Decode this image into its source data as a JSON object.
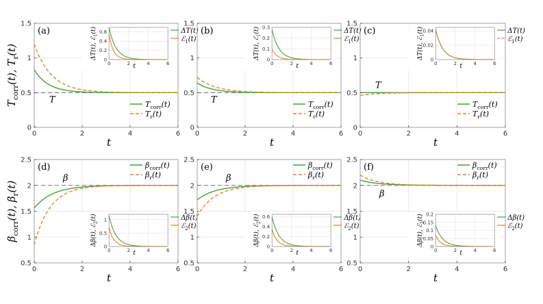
{
  "colors": {
    "green": "#3fa535",
    "orange": "#f07f26",
    "ref": "#777777",
    "grid": "#e3e3e3",
    "frame": "#8c8c8c"
  },
  "shared_ylabels": {
    "top": "T_corr(t), T_r(t)",
    "bottom": "β_corr(t), β_r(t)"
  },
  "chart_data": [
    {
      "type": "line",
      "panel": "(a)",
      "title": "",
      "xlabel": "t",
      "ylabel": "T_corr(t), T_r(t)",
      "xlim": [
        0,
        6
      ],
      "ylim": [
        0,
        1.5
      ],
      "xticks": [
        0,
        2,
        4,
        6
      ],
      "yticks": [
        0,
        0.5,
        1,
        1.5
      ],
      "reference": {
        "value": 0.5,
        "label": "T"
      },
      "series": [
        {
          "name": "T_corr(t)",
          "style": "solid",
          "color": "green",
          "start": 0.83,
          "end": 0.5,
          "rate": 1.7
        },
        {
          "name": "T_r(t)",
          "style": "dashed",
          "color": "orange",
          "start": 1.2,
          "end": 0.5,
          "rate": 1.4
        }
      ],
      "legend": [
        "T_corr(t)",
        "T_r(t)"
      ],
      "legend_position": "bottom-right",
      "inset": {
        "xlim": [
          0,
          6
        ],
        "ylim": [
          0,
          0.7
        ],
        "xticks": [
          0,
          2,
          4,
          6
        ],
        "yticks": [
          0,
          0.2,
          0.4,
          0.6
        ],
        "ylabel": "ΔT(t), ℰ1(t)",
        "xlabel": "t",
        "series": [
          {
            "name": "ΔT(t)",
            "color": "green",
            "start": 0.7,
            "end": 0,
            "rate": 1.4
          },
          {
            "name": "ℰ1(t)",
            "color": "orange",
            "start": 0.55,
            "end": 0,
            "rate": 2.2
          }
        ]
      }
    },
    {
      "type": "line",
      "panel": "(b)",
      "title": "",
      "xlabel": "t",
      "ylabel": "",
      "xlim": [
        0,
        6
      ],
      "ylim": [
        0,
        1.5
      ],
      "xticks": [
        0,
        2,
        4,
        6
      ],
      "yticks": [
        0,
        0.5,
        1,
        1.5
      ],
      "reference": {
        "value": 0.5,
        "label": "T"
      },
      "series": [
        {
          "name": "T_corr(t)",
          "style": "solid",
          "color": "green",
          "start": 0.64,
          "end": 0.5,
          "rate": 1.6
        },
        {
          "name": "T_r(t)",
          "style": "dashed",
          "color": "orange",
          "start": 0.72,
          "end": 0.5,
          "rate": 1.3
        }
      ],
      "legend": [
        "T_corr(t)",
        "T_r(t)"
      ],
      "legend_position": "bottom-right",
      "inset": {
        "xlim": [
          0,
          6
        ],
        "ylim": [
          0,
          0.3
        ],
        "xticks": [
          0,
          2,
          4,
          6
        ],
        "yticks": [
          0,
          0.1,
          0.2,
          0.3
        ],
        "ylabel": "ΔT(t), ℰ1(t)",
        "xlabel": "t",
        "series": [
          {
            "name": "ΔT(t)",
            "color": "green",
            "start": 0.28,
            "end": 0,
            "rate": 1.4
          },
          {
            "name": "ℰ1(t)",
            "color": "orange",
            "start": 0.1,
            "end": 0,
            "rate": 2.0
          }
        ]
      }
    },
    {
      "type": "line",
      "panel": "(c)",
      "title": "",
      "xlabel": "t",
      "ylabel": "",
      "xlim": [
        0,
        6
      ],
      "ylim": [
        0,
        1.5
      ],
      "xticks": [
        0,
        2,
        4,
        6
      ],
      "yticks": [
        0,
        0.5,
        1,
        1.5
      ],
      "reference": {
        "value": 0.5,
        "label": "T"
      },
      "series": [
        {
          "name": "T_corr(t)",
          "style": "solid",
          "color": "green",
          "start": 0.5,
          "end": 0.5,
          "rate": 1.5
        },
        {
          "name": "T_r(t)",
          "style": "dashed",
          "color": "orange",
          "start": 0.46,
          "end": 0.5,
          "rate": 1.4
        }
      ],
      "legend": [
        "T_corr(t)",
        "T_r(t)"
      ],
      "legend_position": "bottom-right",
      "inset": {
        "xlim": [
          0,
          6
        ],
        "ylim": [
          0,
          0.045
        ],
        "xticks": [
          0,
          2,
          4,
          6
        ],
        "yticks": [
          0,
          0.02,
          0.04
        ],
        "ylabel": "ΔT(t), ℰ1(t)",
        "xlabel": "t",
        "series": [
          {
            "name": "ΔT(t)",
            "style": "solid",
            "color": "green",
            "start": 0.042,
            "end": 0,
            "rate": 1.4
          },
          {
            "name": "ℰ1(t)",
            "style": "dashed",
            "color": "orange",
            "start": 0.042,
            "end": 0,
            "rate": 1.4
          }
        ]
      }
    },
    {
      "type": "line",
      "panel": "(d)",
      "title": "",
      "xlabel": "t",
      "ylabel": "β_corr(t), β_r(t)",
      "xlim": [
        0,
        6
      ],
      "ylim": [
        0.5,
        2.5
      ],
      "xticks": [
        0,
        2,
        4,
        6
      ],
      "yticks": [
        0.5,
        1,
        1.5,
        2,
        2.5
      ],
      "reference": {
        "value": 2,
        "label": "β"
      },
      "series": [
        {
          "name": "β_corr(t)",
          "style": "solid",
          "color": "green",
          "start": 1.56,
          "end": 2,
          "rate": 1.3
        },
        {
          "name": "β_r(t)",
          "style": "dashed",
          "color": "orange",
          "start": 0.85,
          "end": 2,
          "rate": 1.5
        }
      ],
      "legend": [
        "β_corr(t)",
        "β_r(t)"
      ],
      "legend_position": "top-right",
      "inset": {
        "xlim": [
          0,
          6
        ],
        "ylim": [
          0,
          1.2
        ],
        "xticks": [
          0,
          2,
          4,
          6
        ],
        "yticks": [
          0,
          0.5,
          1
        ],
        "ylabel": "Δβ(t), ℰ2(t)",
        "xlabel": "t",
        "series": [
          {
            "name": "Δβ(t)",
            "color": "green",
            "start": 1.15,
            "end": 0,
            "rate": 1.4
          },
          {
            "name": "ℰ2(t)",
            "color": "orange",
            "start": 0.7,
            "end": 0,
            "rate": 2.0
          }
        ]
      }
    },
    {
      "type": "line",
      "panel": "(e)",
      "title": "",
      "xlabel": "t",
      "ylabel": "",
      "xlim": [
        0,
        6
      ],
      "ylim": [
        0.5,
        2.5
      ],
      "xticks": [
        0,
        2,
        4,
        6
      ],
      "yticks": [
        0.5,
        1,
        1.5,
        2,
        2.5
      ],
      "reference": {
        "value": 2,
        "label": "β"
      },
      "series": [
        {
          "name": "β_corr(t)",
          "style": "solid",
          "color": "green",
          "start": 1.72,
          "end": 2,
          "rate": 1.3
        },
        {
          "name": "β_r(t)",
          "style": "dashed",
          "color": "orange",
          "start": 1.4,
          "end": 2,
          "rate": 1.4
        }
      ],
      "legend": [
        "β_corr(t)",
        "β_r(t)"
      ],
      "legend_position": "top-right",
      "inset": {
        "xlim": [
          0,
          6
        ],
        "ylim": [
          0,
          0.65
        ],
        "xticks": [
          0,
          2,
          4,
          6
        ],
        "yticks": [
          0,
          0.2,
          0.4,
          0.6
        ],
        "ylabel": "Δβ(t), ℰ2(t)",
        "xlabel": "t",
        "series": [
          {
            "name": "Δβ(t)",
            "color": "green",
            "start": 0.6,
            "end": 0,
            "rate": 1.4
          },
          {
            "name": "ℰ2(t)",
            "color": "orange",
            "start": 0.35,
            "end": 0,
            "rate": 2.0
          }
        ]
      }
    },
    {
      "type": "line",
      "panel": "(f)",
      "title": "",
      "xlabel": "t",
      "ylabel": "",
      "xlim": [
        0,
        6
      ],
      "ylim": [
        0.5,
        2.5
      ],
      "xticks": [
        0,
        2,
        4,
        6
      ],
      "yticks": [
        0.5,
        1,
        1.5,
        2,
        2.5
      ],
      "reference": {
        "value": 2,
        "label": "β"
      },
      "series": [
        {
          "name": "β_corr(t)",
          "style": "solid",
          "color": "green",
          "start": 2.1,
          "end": 2,
          "rate": 1.3
        },
        {
          "name": "β_r(t)",
          "style": "dashed",
          "color": "orange",
          "start": 2.2,
          "end": 2,
          "rate": 1.4
        }
      ],
      "legend": [
        "β_corr(t)",
        "β_r(t)"
      ],
      "legend_position": "top-right",
      "inset": {
        "xlim": [
          0,
          6
        ],
        "ylim": [
          0,
          0.2
        ],
        "xticks": [
          0,
          2,
          4,
          6
        ],
        "yticks": [
          0,
          0.05,
          0.1,
          0.15,
          0.2
        ],
        "ylabel": "Δβ(t), ℰ2(t)",
        "xlabel": "t",
        "series": [
          {
            "name": "Δβ(t)",
            "color": "green",
            "start": 0.13,
            "end": 0,
            "rate": 1.4
          },
          {
            "name": "ℰ2(t)",
            "color": "orange",
            "start": 0.07,
            "end": 0,
            "rate": 2.0
          }
        ]
      }
    }
  ]
}
